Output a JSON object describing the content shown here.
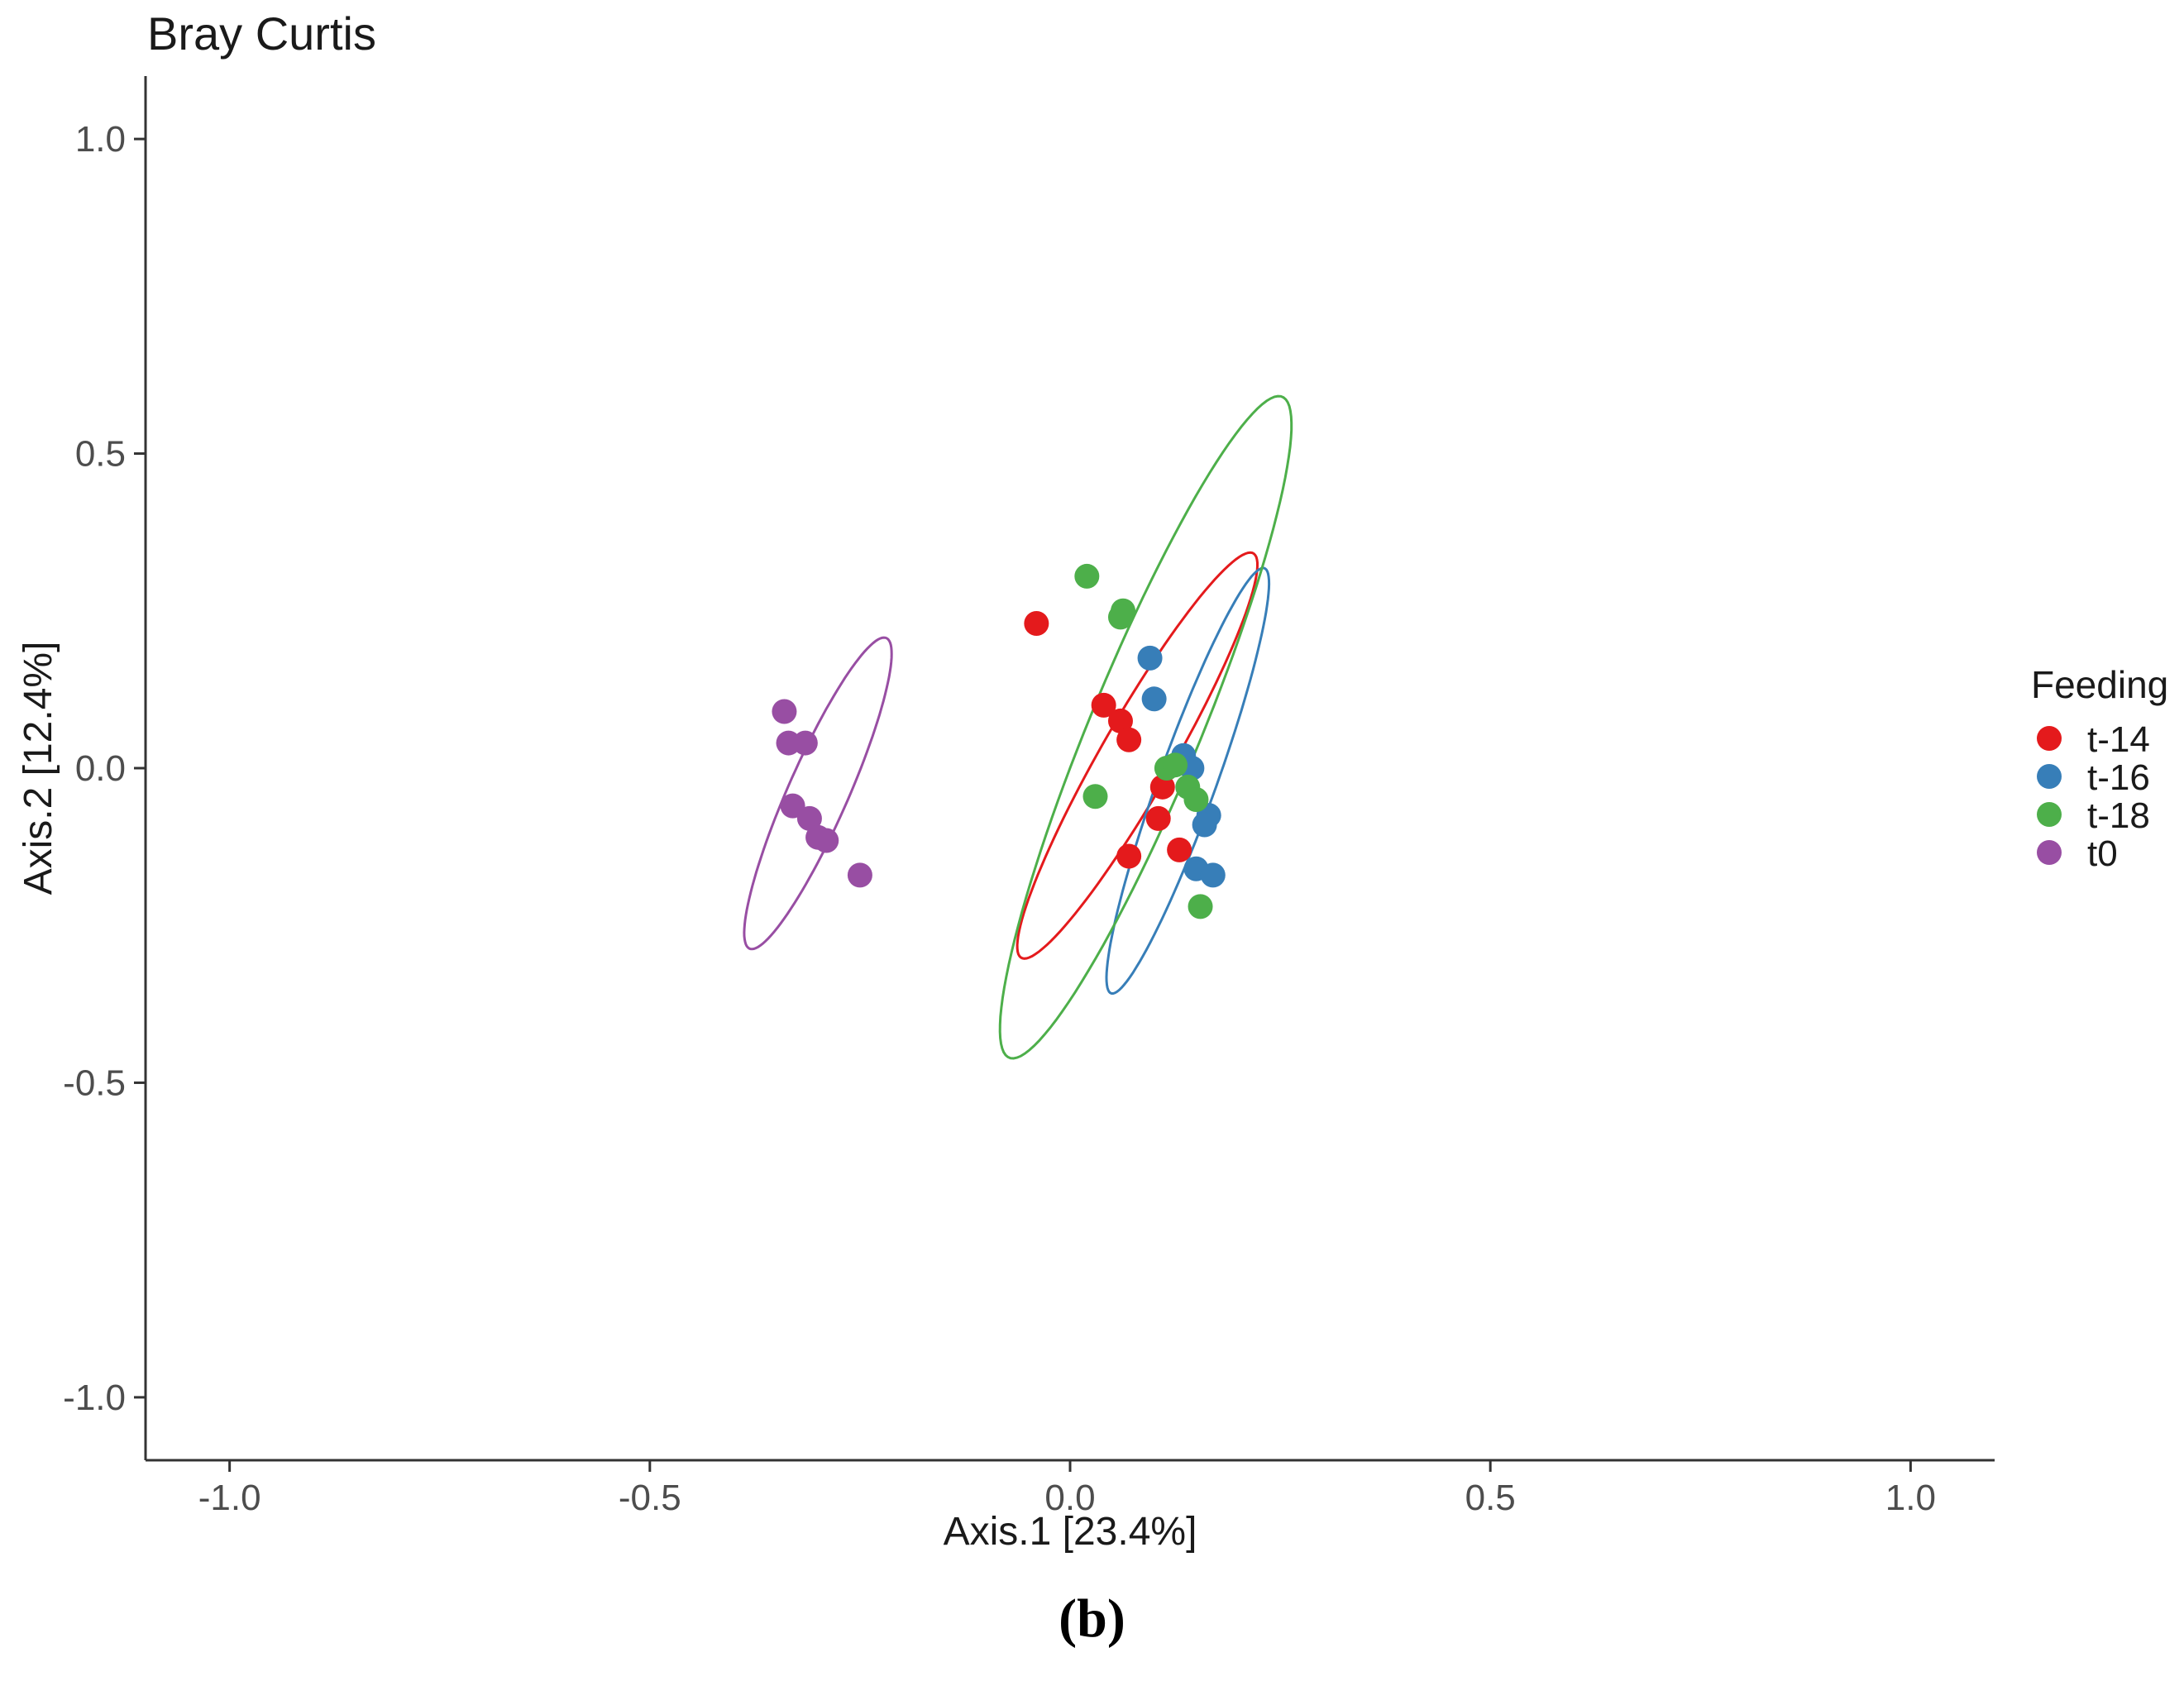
{
  "panel_label": "(b)",
  "chart_data": {
    "type": "scatter",
    "title": "Bray Curtis",
    "xlabel": "Axis.1   [23.4%]",
    "ylabel": "Axis.2   [12.4%]",
    "xlim": [
      -1.1,
      1.1
    ],
    "ylim": [
      -1.1,
      1.1
    ],
    "xticks": [
      -1.0,
      -0.5,
      0.0,
      0.5,
      1.0
    ],
    "yticks": [
      -1.0,
      -0.5,
      0.0,
      0.5,
      1.0
    ],
    "x_tick_labels": [
      "-1.0",
      "-0.5",
      "0.0",
      "0.5",
      "1.0"
    ],
    "y_tick_labels": [
      "-1.0",
      "-0.5",
      "0.0",
      "0.5",
      "1.0"
    ],
    "grid": false,
    "legend": {
      "title": "Feeding",
      "placement": "right",
      "entries": [
        "t-14",
        "t-16",
        "t-18",
        "t0"
      ]
    },
    "series": [
      {
        "name": "t-14",
        "color": "#e41a1c",
        "points": [
          [
            -0.04,
            0.23
          ],
          [
            0.04,
            0.1
          ],
          [
            0.06,
            0.075
          ],
          [
            0.07,
            0.045
          ],
          [
            0.11,
            -0.03
          ],
          [
            0.105,
            -0.08
          ],
          [
            0.13,
            -0.13
          ],
          [
            0.07,
            -0.14
          ]
        ],
        "ellipse": {
          "cx": 0.08,
          "cy": 0.02,
          "rx": 0.045,
          "ry": 0.35,
          "angle_deg": -23
        }
      },
      {
        "name": "t-16",
        "color": "#377eb8",
        "points": [
          [
            0.095,
            0.175
          ],
          [
            0.1,
            0.11
          ],
          [
            0.135,
            0.02
          ],
          [
            0.145,
            0.0
          ],
          [
            0.165,
            -0.075
          ],
          [
            0.16,
            -0.09
          ],
          [
            0.15,
            -0.16
          ],
          [
            0.17,
            -0.17
          ]
        ],
        "ellipse": {
          "cx": 0.14,
          "cy": -0.02,
          "rx": 0.035,
          "ry": 0.35,
          "angle_deg": -15
        }
      },
      {
        "name": "t-18",
        "color": "#4daf4a",
        "points": [
          [
            0.02,
            0.305
          ],
          [
            0.063,
            0.25
          ],
          [
            0.06,
            0.24
          ],
          [
            0.115,
            0.0
          ],
          [
            0.125,
            0.005
          ],
          [
            0.14,
            -0.03
          ],
          [
            0.15,
            -0.05
          ],
          [
            0.03,
            -0.045
          ],
          [
            0.155,
            -0.22
          ]
        ],
        "ellipse": {
          "cx": 0.09,
          "cy": 0.065,
          "rx": 0.068,
          "ry": 0.55,
          "angle_deg": -17
        }
      },
      {
        "name": "t0",
        "color": "#984ea3",
        "points": [
          [
            -0.34,
            0.09
          ],
          [
            -0.335,
            0.04
          ],
          [
            -0.315,
            0.04
          ],
          [
            -0.33,
            -0.06
          ],
          [
            -0.31,
            -0.08
          ],
          [
            -0.3,
            -0.11
          ],
          [
            -0.29,
            -0.115
          ],
          [
            -0.25,
            -0.17
          ]
        ],
        "ellipse": {
          "cx": -0.3,
          "cy": -0.04,
          "rx": 0.037,
          "ry": 0.26,
          "angle_deg": -18
        }
      }
    ]
  }
}
